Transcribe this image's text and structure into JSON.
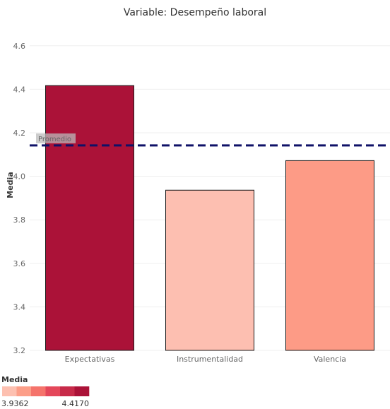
{
  "chart_data": {
    "type": "bar",
    "title": "Variable: Desempeño laboral",
    "ylabel": "Media",
    "xlabel": "",
    "categories": [
      "Expectativas",
      "Instrumentalidad",
      "Valencia"
    ],
    "values": [
      4.417,
      3.9362,
      4.0722
    ],
    "bar_colors": [
      "#ab1238",
      "#fdbfb1",
      "#fd9b86"
    ],
    "ylim": [
      3.2,
      4.7
    ],
    "yticks": [
      "3.2",
      "3.4",
      "3.6",
      "3.8",
      "4.0",
      "4.2",
      "4.4",
      "4.6"
    ],
    "grid": true,
    "reference_line": {
      "label": "Promedio",
      "value": 4.142,
      "color": "#0f1167"
    },
    "legend": {
      "title": "Media",
      "min_label": "3.9362",
      "max_label": "4.4170",
      "colors": [
        "#fdc0b0",
        "#fc9e88",
        "#f5736b",
        "#e4475a",
        "#c72a49",
        "#ab1238"
      ]
    }
  }
}
